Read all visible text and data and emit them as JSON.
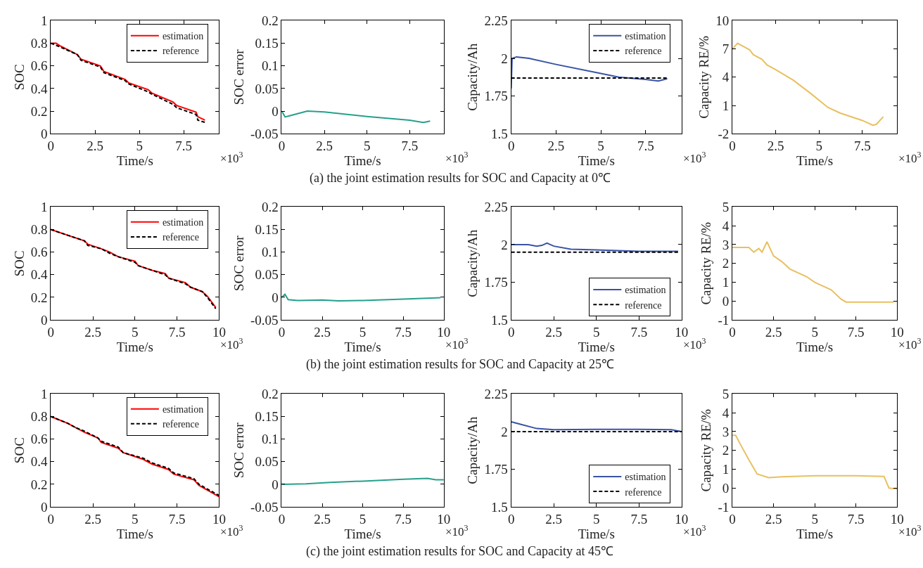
{
  "chart_data": [
    {
      "type": "line",
      "xlabel": "Time/s",
      "ylabel": "SOC",
      "xlim": [
        0,
        9.5
      ],
      "xticks": [
        0,
        2.5,
        5,
        7.5
      ],
      "ylim": [
        0,
        1
      ],
      "yticks": [
        0,
        0.2,
        0.4,
        0.6,
        0.8,
        1
      ],
      "legend": "top right",
      "annotations": [
        "×10$^{3}$",
        "(a) the joint estimation results for SOC and Capacity at 0℃"
      ],
      "series": [
        {
          "name": "estimation",
          "color": "#ff0000",
          "line_style": "solid",
          "x": [
            0,
            0.3,
            0.5,
            1.5,
            1.7,
            2.8,
            3.0,
            4.2,
            4.4,
            5.5,
            5.7,
            6.9,
            7.1,
            8.2,
            8.3,
            8.7
          ],
          "values": [
            0.8,
            0.8,
            0.78,
            0.7,
            0.66,
            0.6,
            0.55,
            0.48,
            0.45,
            0.39,
            0.36,
            0.28,
            0.25,
            0.19,
            0.15,
            0.12
          ]
        },
        {
          "name": "reference",
          "color": "#000000",
          "line_style": "dashed",
          "x": [
            0,
            0.5,
            1.5,
            1.7,
            2.8,
            3.0,
            4.2,
            4.4,
            5.5,
            5.7,
            6.9,
            7.1,
            8.2,
            8.3,
            8.7
          ],
          "values": [
            0.8,
            0.77,
            0.7,
            0.65,
            0.59,
            0.54,
            0.47,
            0.44,
            0.37,
            0.35,
            0.26,
            0.23,
            0.17,
            0.12,
            0.1
          ]
        }
      ]
    },
    {
      "type": "line",
      "xlabel": "Time/s",
      "ylabel": "SOC error",
      "xlim": [
        0,
        9.5
      ],
      "xticks": [
        0,
        2.5,
        5,
        7.5
      ],
      "ylim": [
        -0.05,
        0.2
      ],
      "yticks": [
        -0.05,
        0,
        0.05,
        0.1,
        0.15,
        0.2
      ],
      "annotations": [
        "×10$^{3}$"
      ],
      "series": [
        {
          "color": "#26a08c",
          "x": [
            0,
            0.2,
            0.5,
            1.0,
            1.5,
            2.5,
            5,
            7.5,
            8.3,
            8.7
          ],
          "values": [
            0,
            -0.013,
            -0.01,
            -0.005,
            0,
            -0.002,
            -0.012,
            -0.02,
            -0.025,
            -0.022
          ]
        }
      ]
    },
    {
      "type": "line",
      "xlabel": "Time/s",
      "ylabel": "Capacity/Ah",
      "xlim": [
        0,
        9.5
      ],
      "xticks": [
        0,
        2.5,
        5,
        7.5
      ],
      "ylim": [
        1.5,
        2.25
      ],
      "yticks": [
        1.5,
        1.75,
        2,
        2.25
      ],
      "legend": "top right",
      "annotations": [
        "×10$^{3}$"
      ],
      "series": [
        {
          "name": "estimation",
          "color": "#3853a4",
          "line_style": "solid",
          "x": [
            0,
            0.05,
            0.3,
            1,
            2.5,
            5,
            6,
            7.5,
            8.2,
            8.7
          ],
          "values": [
            1.8,
            2.0,
            2.01,
            2.0,
            1.96,
            1.9,
            1.875,
            1.86,
            1.85,
            1.865
          ]
        },
        {
          "name": "reference",
          "color": "#000000",
          "line_style": "dashed",
          "x": [
            0,
            8.7
          ],
          "values": [
            1.87,
            1.87
          ]
        }
      ]
    },
    {
      "type": "line",
      "xlabel": "Time/s",
      "ylabel": "Capacity RE/%",
      "xlim": [
        0,
        9.5
      ],
      "xticks": [
        0,
        2.5,
        5,
        7.5
      ],
      "ylim": [
        -2,
        10
      ],
      "yticks": [
        -2,
        1,
        4,
        7,
        10
      ],
      "annotations": [
        "×10$^{3}$"
      ],
      "series": [
        {
          "color": "#e8c060",
          "x": [
            0,
            0.3,
            0.7,
            1.0,
            1.2,
            1.7,
            2,
            2.5,
            3.5,
            4.5,
            5.5,
            6.2,
            7.5,
            8.1,
            8.3,
            8.7
          ],
          "values": [
            7,
            7.6,
            7.2,
            6.9,
            6.4,
            5.9,
            5.3,
            4.8,
            3.7,
            2.3,
            0.8,
            0.2,
            -0.6,
            -1.1,
            -1.0,
            -0.2
          ]
        }
      ]
    },
    {
      "type": "line",
      "xlabel": "Time/s",
      "ylabel": "SOC",
      "xlim": [
        0,
        10
      ],
      "xticks": [
        0,
        2.5,
        5,
        7.5,
        10
      ],
      "ylim": [
        0,
        1
      ],
      "yticks": [
        0,
        0.2,
        0.4,
        0.6,
        0.8,
        1
      ],
      "legend": "top right",
      "annotations": [
        "×10$^{3}$",
        "(b) the joint estimation results for SOC and Capacity at 25℃"
      ],
      "series": [
        {
          "name": "estimation",
          "color": "#ff0000",
          "line_style": "solid",
          "x": [
            0,
            1,
            2,
            2.2,
            3,
            3.5,
            4,
            5,
            5.2,
            6,
            6.8,
            7,
            8,
            8.3,
            9,
            9.3,
            9.8
          ],
          "values": [
            0.8,
            0.75,
            0.7,
            0.67,
            0.63,
            0.6,
            0.56,
            0.52,
            0.48,
            0.44,
            0.41,
            0.37,
            0.33,
            0.29,
            0.25,
            0.21,
            0.11
          ]
        },
        {
          "name": "reference",
          "color": "#000000",
          "line_style": "dashed",
          "x": [
            0,
            1,
            2,
            2.2,
            3,
            3.5,
            4,
            5,
            5.2,
            6,
            6.8,
            7,
            8,
            8.3,
            9,
            9.3,
            9.8
          ],
          "values": [
            0.8,
            0.75,
            0.7,
            0.66,
            0.63,
            0.59,
            0.56,
            0.51,
            0.48,
            0.44,
            0.4,
            0.37,
            0.32,
            0.29,
            0.25,
            0.2,
            0.1
          ]
        }
      ]
    },
    {
      "type": "line",
      "xlabel": "Time/s",
      "ylabel": "SOC error",
      "xlim": [
        0,
        10
      ],
      "xticks": [
        0,
        2.5,
        5,
        7.5,
        10
      ],
      "ylim": [
        -0.05,
        0.2
      ],
      "yticks": [
        -0.05,
        0,
        0.05,
        0.1,
        0.15,
        0.2
      ],
      "annotations": [
        "×10$^{3}$"
      ],
      "series": [
        {
          "color": "#26a08c",
          "x": [
            0,
            0.2,
            0.4,
            1,
            2.5,
            3.5,
            5,
            7.5,
            9.8
          ],
          "values": [
            0,
            0.007,
            -0.005,
            -0.007,
            -0.006,
            -0.008,
            -0.007,
            -0.004,
            -0.001
          ]
        }
      ]
    },
    {
      "type": "line",
      "xlabel": "Time/s",
      "ylabel": "Capacity/Ah",
      "xlim": [
        0,
        10
      ],
      "xticks": [
        0,
        2.5,
        5,
        7.5,
        10
      ],
      "ylim": [
        1.5,
        2.25
      ],
      "yticks": [
        1.5,
        1.75,
        2,
        2.25
      ],
      "legend": "bottom right",
      "annotations": [
        "×10$^{3}$"
      ],
      "series": [
        {
          "name": "estimation",
          "color": "#3853a4",
          "line_style": "solid",
          "x": [
            0,
            1,
            1.5,
            1.8,
            2.1,
            2.5,
            3.5,
            5,
            7.5,
            9.8
          ],
          "values": [
            2.0,
            2.0,
            1.99,
            1.995,
            2.01,
            1.99,
            1.97,
            1.965,
            1.955,
            1.955
          ]
        },
        {
          "name": "reference",
          "color": "#000000",
          "line_style": "dashed",
          "x": [
            0,
            9.8
          ],
          "values": [
            1.95,
            1.95
          ]
        }
      ]
    },
    {
      "type": "line",
      "xlabel": "Time/s",
      "ylabel": "Capacity RE/%",
      "xlim": [
        0,
        10
      ],
      "xticks": [
        0,
        2.5,
        5,
        7.5,
        10
      ],
      "ylim": [
        -1,
        5
      ],
      "yticks": [
        -1,
        0,
        1,
        2,
        3,
        4,
        5
      ],
      "annotations": [
        "×10$^{3}$"
      ],
      "series": [
        {
          "color": "#e8c060",
          "x": [
            0,
            1,
            1.3,
            1.6,
            1.8,
            2.1,
            2.5,
            3,
            3.5,
            4.5,
            5,
            6,
            6.6,
            6.9,
            9.8
          ],
          "values": [
            2.85,
            2.85,
            2.6,
            2.8,
            2.6,
            3.15,
            2.4,
            2.1,
            1.7,
            1.3,
            1.0,
            0.6,
            0.1,
            -0.05,
            -0.05
          ]
        }
      ]
    },
    {
      "type": "line",
      "xlabel": "Time/s",
      "ylabel": "SOC",
      "xlim": [
        0,
        10
      ],
      "xticks": [
        0,
        2.5,
        5,
        7.5,
        10
      ],
      "ylim": [
        0,
        1
      ],
      "yticks": [
        0,
        0.2,
        0.4,
        0.6,
        0.8,
        1
      ],
      "legend": "top right",
      "annotations": [
        "×10$^{3}$",
        "(c) the joint estimation results for SOC and Capacity at 45℃"
      ],
      "series": [
        {
          "name": "estimation",
          "color": "#ff0000",
          "line_style": "solid",
          "x": [
            0,
            1,
            1.5,
            2,
            2.8,
            3,
            4,
            4.3,
            5.5,
            6,
            7,
            7.3,
            8.5,
            8.8,
            10
          ],
          "values": [
            0.8,
            0.74,
            0.7,
            0.66,
            0.61,
            0.57,
            0.52,
            0.48,
            0.42,
            0.38,
            0.33,
            0.29,
            0.24,
            0.19,
            0.09
          ]
        },
        {
          "name": "reference",
          "color": "#000000",
          "line_style": "dashed",
          "x": [
            0,
            1,
            1.5,
            2,
            2.8,
            3,
            4,
            4.3,
            5.5,
            6,
            7,
            7.3,
            8.5,
            8.8,
            10
          ],
          "values": [
            0.8,
            0.74,
            0.7,
            0.67,
            0.61,
            0.58,
            0.53,
            0.48,
            0.43,
            0.39,
            0.34,
            0.3,
            0.25,
            0.2,
            0.1
          ]
        }
      ]
    },
    {
      "type": "line",
      "xlabel": "Time/s",
      "ylabel": "SOC error",
      "xlim": [
        0,
        10
      ],
      "xticks": [
        0,
        2.5,
        5,
        7.5,
        10
      ],
      "ylim": [
        -0.05,
        0.2
      ],
      "yticks": [
        -0.05,
        0,
        0.05,
        0.1,
        0.15,
        0.2
      ],
      "annotations": [
        "×10$^{3}$"
      ],
      "series": [
        {
          "color": "#26a08c",
          "x": [
            0,
            1.5,
            3,
            5,
            7.5,
            9,
            9.5,
            10
          ],
          "values": [
            0,
            0.001,
            0.004,
            0.007,
            0.011,
            0.013,
            0.01,
            0.01
          ]
        }
      ]
    },
    {
      "type": "line",
      "xlabel": "Time/s",
      "ylabel": "Capacity/Ah",
      "xlim": [
        0,
        10
      ],
      "xticks": [
        0,
        2.5,
        5,
        7.5,
        10
      ],
      "ylim": [
        1.5,
        2.25
      ],
      "yticks": [
        1.5,
        1.75,
        2,
        2.25
      ],
      "legend": "bottom right",
      "annotations": [
        "×10$^{3}$"
      ],
      "series": [
        {
          "name": "estimation",
          "color": "#3853a4",
          "line_style": "solid",
          "x": [
            0,
            0.5,
            1.5,
            2.5,
            5,
            7.5,
            9.4,
            10
          ],
          "values": [
            2.065,
            2.05,
            2.02,
            2.012,
            2.015,
            2.015,
            2.012,
            2.0
          ]
        },
        {
          "name": "reference",
          "color": "#000000",
          "line_style": "dashed",
          "x": [
            0,
            10
          ],
          "values": [
            2.0,
            2.0
          ]
        }
      ]
    },
    {
      "type": "line",
      "xlabel": "Time/s",
      "ylabel": "Capacity RE/%",
      "xlim": [
        0,
        10
      ],
      "xticks": [
        0,
        2.5,
        5,
        7.5,
        10
      ],
      "ylim": [
        -1,
        5
      ],
      "yticks": [
        -1,
        0,
        1,
        2,
        3,
        4,
        5
      ],
      "annotations": [
        "×10$^{3}$"
      ],
      "series": [
        {
          "color": "#e8c060",
          "x": [
            0,
            0.2,
            0.5,
            1,
            1.5,
            2.2,
            3,
            5,
            7.5,
            9.2,
            9.5,
            10
          ],
          "values": [
            2.8,
            2.8,
            2.3,
            1.5,
            0.75,
            0.55,
            0.6,
            0.65,
            0.65,
            0.62,
            0.0,
            -0.05
          ]
        }
      ]
    }
  ]
}
